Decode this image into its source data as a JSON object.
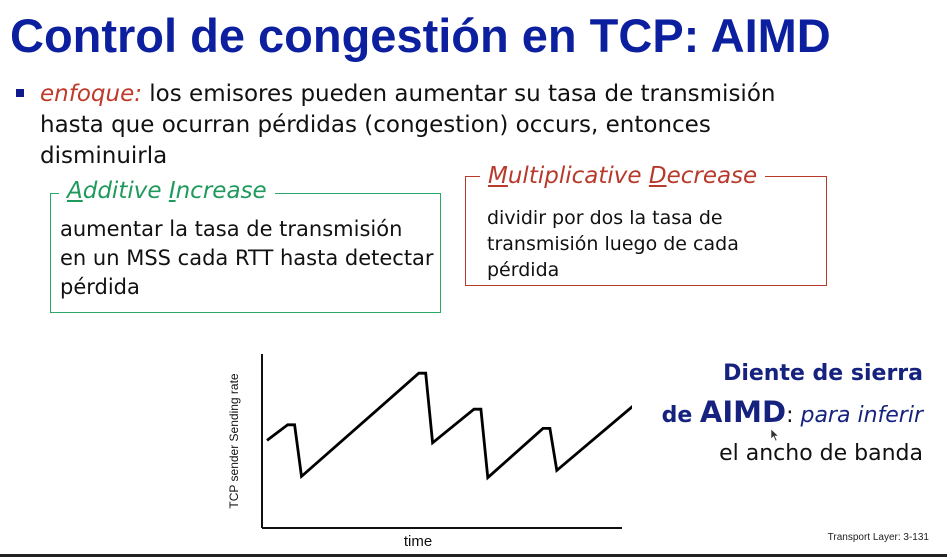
{
  "title": "Control de congestión en TCP: AIMD",
  "bullet": {
    "lead": "enfoque:",
    "text": " los emisores pueden aumentar su tasa de transmisión hasta que ocurran pérdidas (congestion) occurs, entonces disminuirla"
  },
  "additive_box": {
    "title_a": "A",
    "title_b": "dditive ",
    "title_c": "I",
    "title_d": "ncrease",
    "body": "aumentar la tasa de transmisión en un MSS cada RTT hasta detectar pérdida"
  },
  "multiplicative_box": {
    "title_a": "M",
    "title_b": "ultiplicative ",
    "title_c": "D",
    "title_d": "ecrease",
    "body": "dividir por dos la tasa de transmisión luego de cada pérdida"
  },
  "chart_data": {
    "type": "line",
    "xlabel": "time",
    "ylabel": "TCP sender  Sending rate",
    "series": [
      {
        "x": [
          0,
          3,
          4,
          5,
          22,
          23,
          24,
          30,
          31,
          32,
          40,
          41,
          42,
          56
        ],
        "values": [
          5.8,
          7.1,
          7.1,
          2.8,
          11.4,
          11.4,
          5.6,
          8.4,
          8.4,
          2.7,
          6.8,
          6.8,
          3.3,
          10.1
        ]
      }
    ],
    "colors": {
      "line": "#000000",
      "axis": "#111111"
    }
  },
  "caption": {
    "line1": "Diente de sierra",
    "line2_de": "de ",
    "line2_aimd": "AIMD",
    "line2_colon": ": ",
    "line2_para": "para inferir",
    "line3": "el ancho de banda"
  },
  "footer": "Transport Layer: 3-131",
  "colors": {
    "title": "#0c1f9f",
    "accent_red": "#c0392b",
    "additive_green": "#2aa86a",
    "multiplicative_red": "#b83a2c"
  }
}
